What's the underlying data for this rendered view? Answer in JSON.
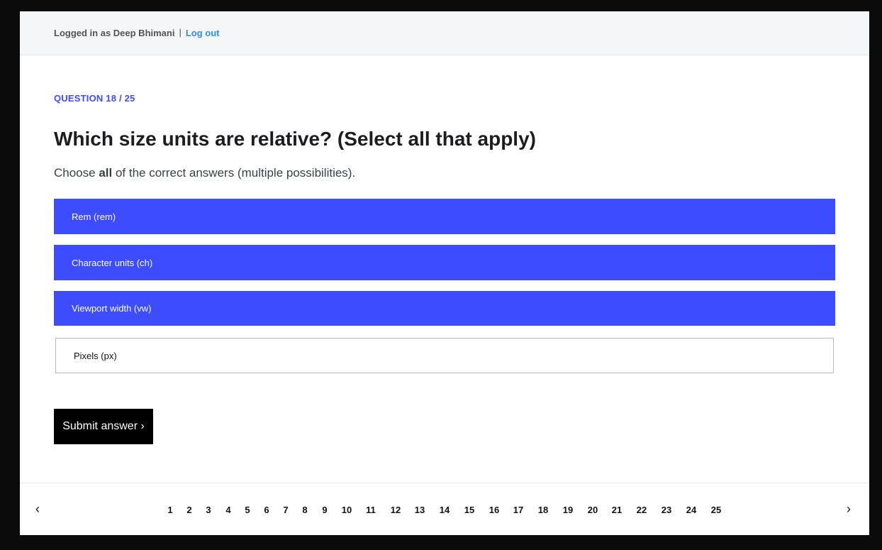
{
  "header": {
    "logged_in_text": "Logged in as Deep Bhimani",
    "separator": "|",
    "logout_label": "Log out"
  },
  "question": {
    "counter": "QUESTION 18 / 25",
    "title": "Which size units are relative? (Select all that apply)",
    "hint_prefix": "Choose ",
    "hint_bold": "all",
    "hint_suffix": " of the correct answers (multiple possibilities).",
    "options": [
      {
        "label": "Rem (rem)",
        "selected": true
      },
      {
        "label": "Character units (ch)",
        "selected": true
      },
      {
        "label": "Viewport width (vw)",
        "selected": true
      },
      {
        "label": "Pixels (px)",
        "selected": false
      }
    ]
  },
  "submit_label": "Submit answer ›",
  "pagination": {
    "prev_icon": "‹",
    "next_icon": "›",
    "pages": [
      "1",
      "2",
      "3",
      "4",
      "5",
      "6",
      "7",
      "8",
      "9",
      "10",
      "11",
      "12",
      "13",
      "14",
      "15",
      "16",
      "17",
      "18",
      "19",
      "20",
      "21",
      "22",
      "23",
      "24",
      "25"
    ]
  },
  "colors": {
    "accent": "#3d4cff",
    "link": "#2f8fe0",
    "button": "#000000"
  }
}
